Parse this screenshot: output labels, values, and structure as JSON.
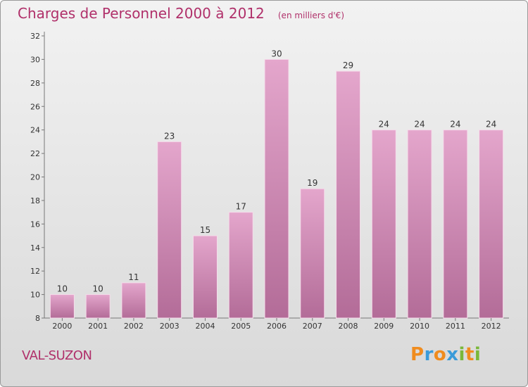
{
  "header": {
    "title": "Charges de Personnel 2000 à 2012",
    "subtitle": "(en milliers d'€)"
  },
  "footer": {
    "commune": "VAL-SUZON",
    "brand": "Proxiti",
    "brand_letters": [
      {
        "ch": "P",
        "color": "#f08c1e"
      },
      {
        "ch": "r",
        "color": "#3a9bd9"
      },
      {
        "ch": "o",
        "color": "#f08c1e"
      },
      {
        "ch": "x",
        "color": "#3a9bd9"
      },
      {
        "ch": "i",
        "color": "#7ab83a"
      },
      {
        "ch": "t",
        "color": "#f08c1e"
      },
      {
        "ch": "i",
        "color": "#7ab83a"
      }
    ]
  },
  "colors": {
    "bar_top": "#e4a6cc",
    "bar_bottom": "#b36c98",
    "accent": "#b0306a"
  },
  "chart_data": {
    "type": "bar",
    "categories": [
      "2000",
      "2001",
      "2002",
      "2003",
      "2004",
      "2005",
      "2006",
      "2007",
      "2008",
      "2009",
      "2010",
      "2011",
      "2012"
    ],
    "values": [
      10,
      10,
      11,
      23,
      15,
      17,
      30,
      19,
      29,
      24,
      24,
      24,
      24
    ],
    "title": "Charges de Personnel 2000 à 2012",
    "subtitle": "(en milliers d'€)",
    "ylim": [
      8,
      32
    ],
    "yticks": [
      8,
      10,
      12,
      14,
      16,
      18,
      20,
      22,
      24,
      26,
      28,
      30,
      32
    ],
    "grid": false,
    "data_labels": true
  }
}
